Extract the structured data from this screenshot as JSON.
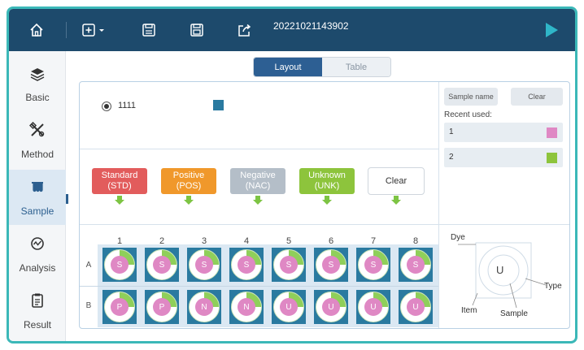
{
  "header": {
    "run_name": "20221021143902",
    "icons": [
      "home-icon",
      "new-file-icon",
      "save-icon",
      "save-as-icon",
      "export-icon",
      "run-icon"
    ]
  },
  "sidebar": {
    "items": [
      {
        "label": "Basic",
        "icon": "layers-icon"
      },
      {
        "label": "Method",
        "icon": "tools-icon"
      },
      {
        "label": "Sample",
        "icon": "plate-icon",
        "active": true
      },
      {
        "label": "Analysis",
        "icon": "analysis-icon"
      },
      {
        "label": "Result",
        "icon": "report-icon"
      }
    ]
  },
  "view_toggle": {
    "layout": "Layout",
    "table": "Table",
    "selected": "Layout"
  },
  "dye": {
    "name": "1111",
    "color": "#2a7aa0"
  },
  "sample_types": [
    {
      "label": "Standard",
      "abbr": "(STD)",
      "color": "#e25c5c"
    },
    {
      "label": "Positive",
      "abbr": "(POS)",
      "color": "#f0982b"
    },
    {
      "label": "Negative",
      "abbr": "(NAC)",
      "color": "#b4bec8"
    },
    {
      "label": "Unknown",
      "abbr": "(UNK)",
      "color": "#8dc43c"
    }
  ],
  "clear_type_label": "Clear",
  "right_panel": {
    "sample_name_label": "Sample name",
    "clear_label": "Clear",
    "recent_used_label": "Recent used:",
    "recent": [
      {
        "name": "1",
        "color": "#df88c4"
      },
      {
        "name": "2",
        "color": "#8dc43c"
      }
    ]
  },
  "plate": {
    "columns": [
      "1",
      "2",
      "3",
      "4",
      "5",
      "6",
      "7",
      "8"
    ],
    "rows": [
      {
        "label": "A",
        "wells": [
          "S",
          "S",
          "S",
          "S",
          "S",
          "S",
          "S",
          "S"
        ]
      },
      {
        "label": "B",
        "wells": [
          "P",
          "P",
          "N",
          "N",
          "U",
          "U",
          "U",
          "U"
        ]
      }
    ]
  },
  "legend": {
    "dye": "Dye",
    "type": "Type",
    "item": "Item",
    "sample": "Sample",
    "center": "U"
  }
}
